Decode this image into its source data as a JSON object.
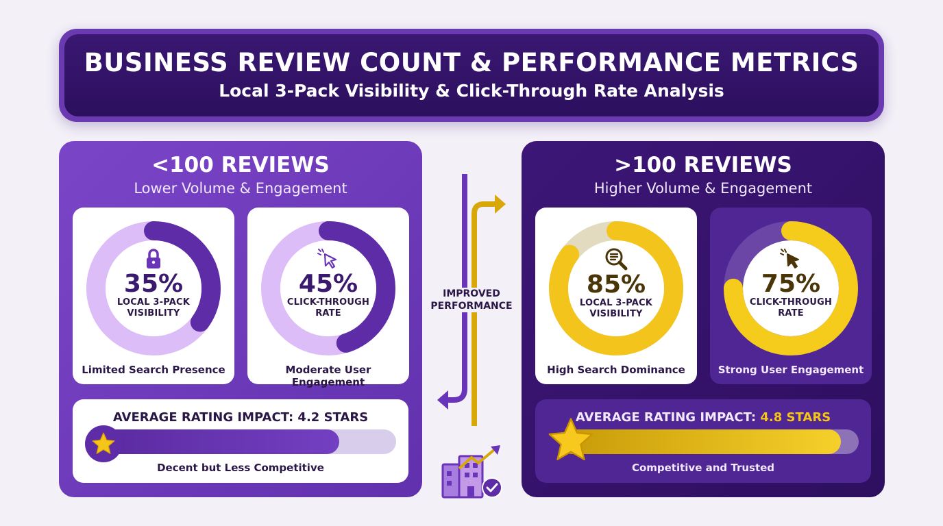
{
  "header": {
    "title": "BUSINESS REVIEW COUNT & PERFORMANCE METRICS",
    "subtitle": "Local 3-Pack Visibility & Click-Through Rate Analysis"
  },
  "colors": {
    "purple_primary": "#6a3bb0",
    "purple_dark": "#2d0f5f",
    "lavender": "#d9b8f5",
    "gold": "#f5c518"
  },
  "connector": {
    "label_line1": "IMPROVED",
    "label_line2": "PERFORMANCE"
  },
  "left": {
    "title": "<100 REVIEWS",
    "subtitle": "Lower Volume & Engagement",
    "metrics": [
      {
        "icon": "lock-icon",
        "percent_label": "35%",
        "value": 35,
        "label_line1": "LOCAL 3-PACK",
        "label_line2": "VISIBILITY",
        "caption": "Limited Search Presence"
      },
      {
        "icon": "cursor-click-icon",
        "percent_label": "45%",
        "value": 45,
        "label_line1": "CLICK-THROUGH",
        "label_line2": "RATE",
        "caption": "Moderate User Engagement"
      }
    ],
    "rating": {
      "title": "AVERAGE RATING IMPACT: 4.2 STARS",
      "stars": 4.2,
      "bar_fraction": 0.81,
      "caption": "Decent but Less Competitive"
    }
  },
  "right": {
    "title": ">100 REVIEWS",
    "subtitle": "Higher Volume & Engagement",
    "metrics": [
      {
        "icon": "search-list-icon",
        "percent_label": "85%",
        "value": 85,
        "label_line1": "LOCAL 3-PACK",
        "label_line2": "VISIBILITY",
        "caption": "High Search Dominance"
      },
      {
        "icon": "cursor-click-icon",
        "percent_label": "75%",
        "value": 75,
        "label_line1": "CLICK-THROUGH",
        "label_line2": "RATE",
        "caption": "Strong User Engagement"
      }
    ],
    "rating": {
      "title_prefix": "AVERAGE RATING IMPACT: ",
      "title_value": "4.8 STARS",
      "stars": 4.8,
      "bar_fraction": 0.94,
      "caption": "Competitive and Trusted"
    }
  }
}
